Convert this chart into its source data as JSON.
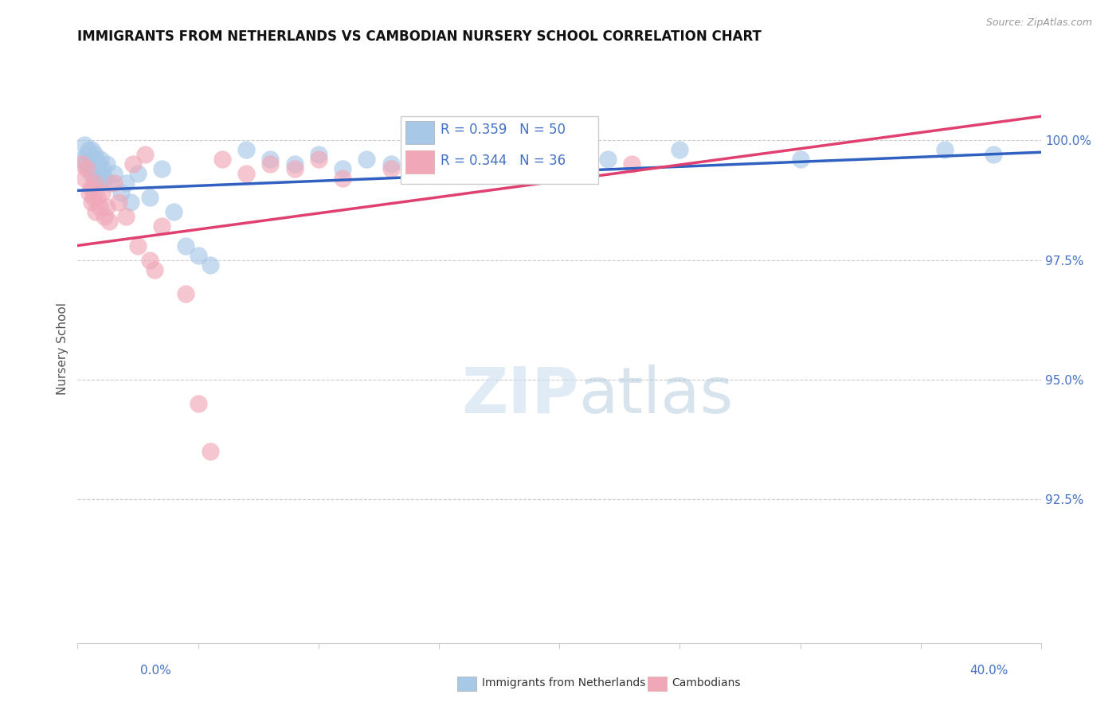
{
  "title": "IMMIGRANTS FROM NETHERLANDS VS CAMBODIAN NURSERY SCHOOL CORRELATION CHART",
  "source": "Source: ZipAtlas.com",
  "ylabel": "Nursery School",
  "xlim": [
    0.0,
    40.0
  ],
  "ylim": [
    89.5,
    101.8
  ],
  "ytick_vals": [
    92.5,
    95.0,
    97.5,
    100.0
  ],
  "gridline_y": [
    92.5,
    95.0,
    97.5,
    100.0
  ],
  "legend_blue_r": "R = 0.359",
  "legend_blue_n": "N = 50",
  "legend_pink_r": "R = 0.344",
  "legend_pink_n": "N = 36",
  "legend_blue_label": "Immigrants from Netherlands",
  "legend_pink_label": "Cambodians",
  "blue_color": "#a8c8e8",
  "pink_color": "#f0a8b8",
  "blue_line_color": "#3060c0",
  "pink_line_color": "#e04070",
  "blue_text_color": "#4472c4",
  "pink_text_color": "#e04070",
  "blue_scatter": [
    [
      0.2,
      99.6
    ],
    [
      0.3,
      99.9
    ],
    [
      0.35,
      99.5
    ],
    [
      0.4,
      99.7
    ],
    [
      0.45,
      99.8
    ],
    [
      0.5,
      99.6
    ],
    [
      0.55,
      99.3
    ],
    [
      0.6,
      99.8
    ],
    [
      0.62,
      99.4
    ],
    [
      0.65,
      99.5
    ],
    [
      0.7,
      99.7
    ],
    [
      0.72,
      99.2
    ],
    [
      0.75,
      99.6
    ],
    [
      0.8,
      99.4
    ],
    [
      0.85,
      99.5
    ],
    [
      0.9,
      99.3
    ],
    [
      0.95,
      99.6
    ],
    [
      1.0,
      99.1
    ],
    [
      1.05,
      99.4
    ],
    [
      1.1,
      99.2
    ],
    [
      1.2,
      99.5
    ],
    [
      1.3,
      99.1
    ],
    [
      1.5,
      99.3
    ],
    [
      1.8,
      98.9
    ],
    [
      2.0,
      99.1
    ],
    [
      2.2,
      98.7
    ],
    [
      2.5,
      99.3
    ],
    [
      3.0,
      98.8
    ],
    [
      3.5,
      99.4
    ],
    [
      4.0,
      98.5
    ],
    [
      4.5,
      97.8
    ],
    [
      5.0,
      97.6
    ],
    [
      5.5,
      97.4
    ],
    [
      7.0,
      99.8
    ],
    [
      8.0,
      99.6
    ],
    [
      9.0,
      99.5
    ],
    [
      10.0,
      99.7
    ],
    [
      11.0,
      99.4
    ],
    [
      12.0,
      99.6
    ],
    [
      13.0,
      99.5
    ],
    [
      14.0,
      99.6
    ],
    [
      15.0,
      99.7
    ],
    [
      16.0,
      99.4
    ],
    [
      18.0,
      99.8
    ],
    [
      20.0,
      99.5
    ],
    [
      22.0,
      99.6
    ],
    [
      25.0,
      99.8
    ],
    [
      30.0,
      99.6
    ],
    [
      36.0,
      99.8
    ],
    [
      38.0,
      99.7
    ]
  ],
  "pink_scatter": [
    [
      0.2,
      99.5
    ],
    [
      0.3,
      99.2
    ],
    [
      0.4,
      99.4
    ],
    [
      0.5,
      98.9
    ],
    [
      0.55,
      99.0
    ],
    [
      0.6,
      98.7
    ],
    [
      0.65,
      98.8
    ],
    [
      0.7,
      99.1
    ],
    [
      0.75,
      98.5
    ],
    [
      0.8,
      98.8
    ],
    [
      0.9,
      98.6
    ],
    [
      1.0,
      98.9
    ],
    [
      1.1,
      98.4
    ],
    [
      1.2,
      98.6
    ],
    [
      1.3,
      98.3
    ],
    [
      1.5,
      99.1
    ],
    [
      1.7,
      98.7
    ],
    [
      2.0,
      98.4
    ],
    [
      2.3,
      99.5
    ],
    [
      2.5,
      97.8
    ],
    [
      2.8,
      99.7
    ],
    [
      3.0,
      97.5
    ],
    [
      3.2,
      97.3
    ],
    [
      3.5,
      98.2
    ],
    [
      4.5,
      96.8
    ],
    [
      5.0,
      94.5
    ],
    [
      5.5,
      93.5
    ],
    [
      6.0,
      99.6
    ],
    [
      7.0,
      99.3
    ],
    [
      8.0,
      99.5
    ],
    [
      9.0,
      99.4
    ],
    [
      10.0,
      99.6
    ],
    [
      11.0,
      99.2
    ],
    [
      13.0,
      99.4
    ],
    [
      17.0,
      99.5
    ],
    [
      23.0,
      99.5
    ]
  ],
  "blue_line_x0": 0.0,
  "blue_line_x1": 40.0,
  "blue_line_y0": 98.95,
  "blue_line_y1": 99.75,
  "pink_line_x0": 0.0,
  "pink_line_x1": 40.0,
  "pink_line_y0": 97.8,
  "pink_line_y1": 100.5
}
